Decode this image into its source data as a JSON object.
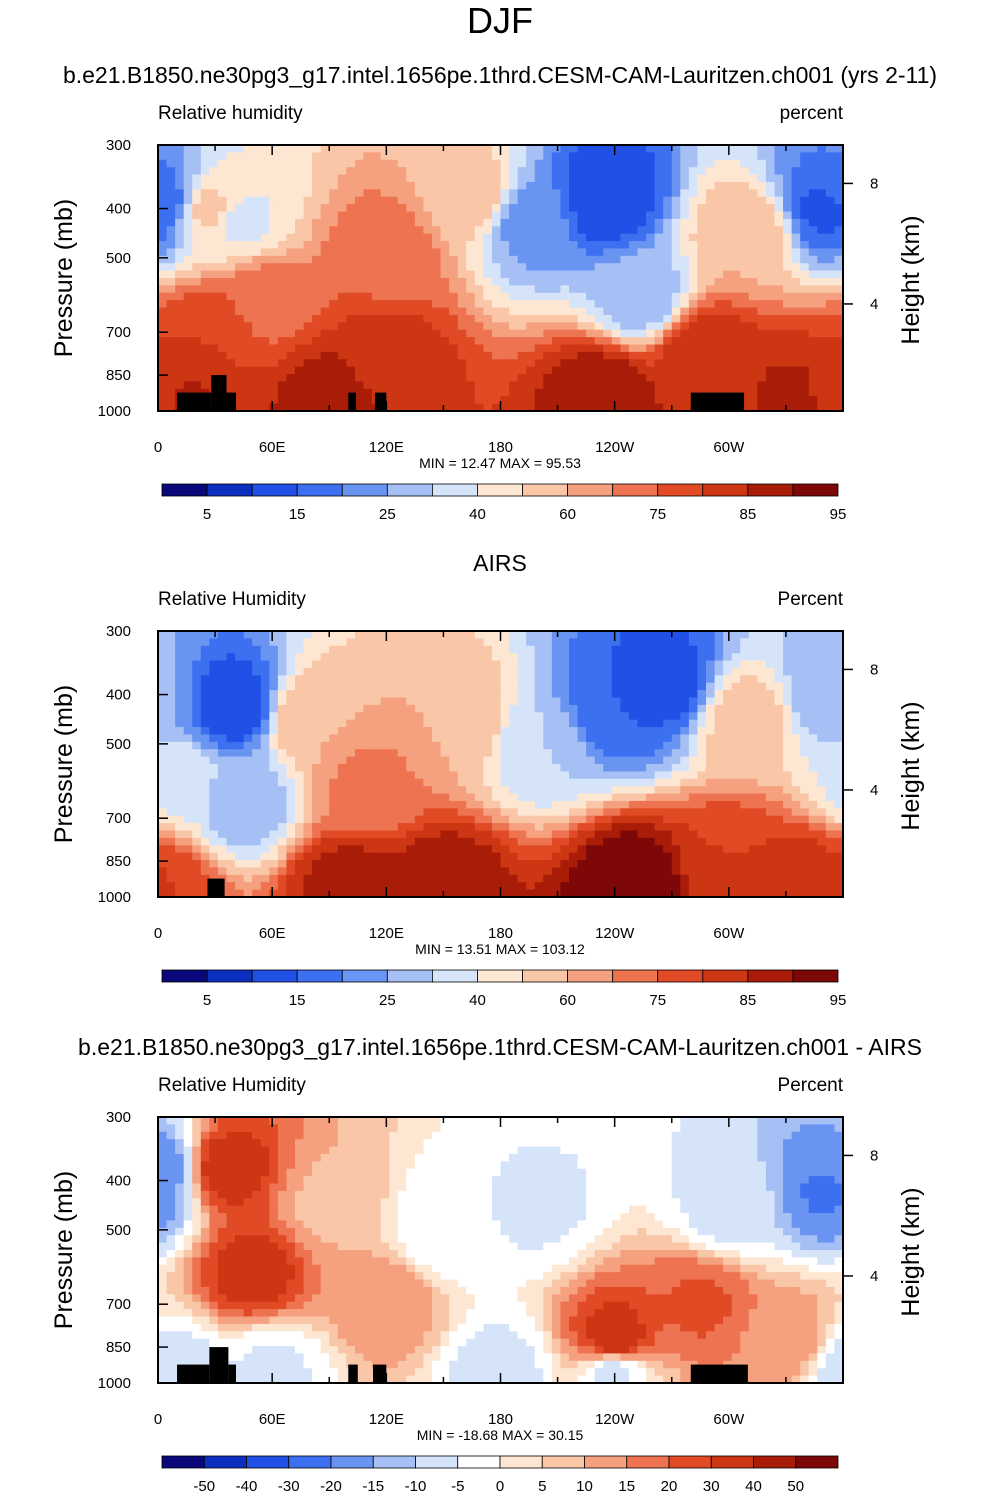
{
  "main_title": "DJF",
  "colors": {
    "rh_levels": [
      "#08087a",
      "#0c2fc0",
      "#2050e6",
      "#3c70f0",
      "#6a94f2",
      "#a6c0f6",
      "#d6e4fa",
      "#fde7d2",
      "#fac6a8",
      "#f5a07e",
      "#ee7350",
      "#e04a24",
      "#cc3612",
      "#a81c08",
      "#7e0808"
    ],
    "diff_levels": [
      "#08087a",
      "#0c2fc0",
      "#2050e6",
      "#3c70f0",
      "#6a94f2",
      "#a6c0f6",
      "#d6e4fa",
      "#ffffff",
      "#fde7d2",
      "#fac6a8",
      "#f5a07e",
      "#ee7350",
      "#e04a24",
      "#cc3612",
      "#a81c08",
      "#7e0808"
    ]
  },
  "chart_data": [
    {
      "type": "contour",
      "title": "b.e21.B1850.ne30pg3_g17.intel.1656pe.1thrd.CESM-CAM-Lauritzen.ch001 (yrs 2-11)",
      "left_label": "Relative humidity",
      "right_label": "percent",
      "ylabel": "Pressure (mb)",
      "ylabel_right": "Height (km)",
      "x_ticks": [
        "0",
        "60E",
        "120E",
        "180",
        "120W",
        "60W"
      ],
      "y_ticks": [
        "300",
        "400",
        "500",
        "700",
        "850",
        "1000"
      ],
      "y_ticks_right": [
        "8",
        "4"
      ],
      "min_max_text": "MIN =  12.47   MAX =  95.53",
      "colorbar_labels": [
        "5",
        "15",
        "25",
        "40",
        "60",
        "75",
        "85",
        "95"
      ],
      "blobs": [
        {
          "lon": 0,
          "p": 950,
          "v": 85
        },
        {
          "lon": 15,
          "p": 950,
          "v": 87
        },
        {
          "lon": 28,
          "p": 700,
          "v": 80
        },
        {
          "lon": 28,
          "p": 400,
          "v": 55
        },
        {
          "lon": 42,
          "p": 420,
          "v": 45
        },
        {
          "lon": 55,
          "p": 600,
          "v": 70
        },
        {
          "lon": 90,
          "p": 950,
          "v": 90
        },
        {
          "lon": 120,
          "p": 800,
          "v": 85
        },
        {
          "lon": 120,
          "p": 500,
          "v": 72
        },
        {
          "lon": 165,
          "p": 380,
          "v": 58
        },
        {
          "lon": 195,
          "p": 420,
          "v": 30
        },
        {
          "lon": 235,
          "p": 380,
          "v": 14
        },
        {
          "lon": 255,
          "p": 600,
          "v": 35
        },
        {
          "lon": 235,
          "p": 920,
          "v": 92
        },
        {
          "lon": 285,
          "p": 760,
          "v": 85
        },
        {
          "lon": 300,
          "p": 900,
          "v": 85
        },
        {
          "lon": 310,
          "p": 450,
          "v": 60
        },
        {
          "lon": 330,
          "p": 950,
          "v": 88
        },
        {
          "lon": 352,
          "p": 400,
          "v": 18
        },
        {
          "lon": 3,
          "p": 380,
          "v": 25
        }
      ],
      "land": [
        {
          "lon0": 10,
          "lon1": 28,
          "p_top": 920
        },
        {
          "lon0": 28,
          "lon1": 36,
          "p_top": 850
        },
        {
          "lon0": 36,
          "lon1": 41,
          "p_top": 920
        },
        {
          "lon0": 100,
          "lon1": 104,
          "p_top": 920
        },
        {
          "lon0": 114,
          "lon1": 120,
          "p_top": 920
        },
        {
          "lon0": 280,
          "lon1": 308,
          "p_top": 920
        }
      ]
    },
    {
      "type": "contour",
      "title": "AIRS",
      "left_label": "Relative Humidity",
      "right_label": "Percent",
      "ylabel": "Pressure (mb)",
      "ylabel_right": "Height (km)",
      "x_ticks": [
        "0",
        "60E",
        "120E",
        "180",
        "120W",
        "60W"
      ],
      "y_ticks": [
        "300",
        "400",
        "500",
        "700",
        "850",
        "1000"
      ],
      "y_ticks_right": [
        "8",
        "4"
      ],
      "min_max_text": "MIN =  13.51   MAX = 103.12",
      "colorbar_labels": [
        "5",
        "15",
        "25",
        "40",
        "60",
        "75",
        "85",
        "95"
      ],
      "blobs": [
        {
          "lon": 0,
          "p": 950,
          "v": 80
        },
        {
          "lon": 10,
          "p": 600,
          "v": 45
        },
        {
          "lon": 40,
          "p": 420,
          "v": 15
        },
        {
          "lon": 45,
          "p": 650,
          "v": 35
        },
        {
          "lon": 80,
          "p": 450,
          "v": 60
        },
        {
          "lon": 110,
          "p": 600,
          "v": 68
        },
        {
          "lon": 150,
          "p": 950,
          "v": 92
        },
        {
          "lon": 100,
          "p": 950,
          "v": 90
        },
        {
          "lon": 160,
          "p": 450,
          "v": 60
        },
        {
          "lon": 200,
          "p": 500,
          "v": 40
        },
        {
          "lon": 240,
          "p": 420,
          "v": 20
        },
        {
          "lon": 265,
          "p": 380,
          "v": 16
        },
        {
          "lon": 250,
          "p": 950,
          "v": 100
        },
        {
          "lon": 300,
          "p": 850,
          "v": 80
        },
        {
          "lon": 310,
          "p": 450,
          "v": 58
        },
        {
          "lon": 340,
          "p": 930,
          "v": 85
        },
        {
          "lon": 352,
          "p": 400,
          "v": 35
        }
      ],
      "land": [
        {
          "lon0": 26,
          "lon1": 35,
          "p_top": 920
        }
      ]
    },
    {
      "type": "contour",
      "title": "b.e21.B1850.ne30pg3_g17.intel.1656pe.1thrd.CESM-CAM-Lauritzen.ch001 - AIRS",
      "left_label": "Relative Humidity",
      "right_label": "Percent",
      "ylabel": "Pressure (mb)",
      "ylabel_right": "Height (km)",
      "x_ticks": [
        "0",
        "60E",
        "120E",
        "180",
        "120W",
        "60W"
      ],
      "y_ticks": [
        "300",
        "400",
        "500",
        "700",
        "850",
        "1000"
      ],
      "y_ticks_right": [
        "8",
        "4"
      ],
      "min_max_text": "MIN = -18.68   MAX =  30.15",
      "colorbar_labels": [
        "-50",
        "-40",
        "-30",
        "-20",
        "-15",
        "-10",
        "-5",
        "0",
        "5",
        "10",
        "15",
        "20",
        "30",
        "40",
        "50"
      ],
      "blobs": [
        {
          "lon": 2,
          "p": 380,
          "v": -15
        },
        {
          "lon": 5,
          "p": 950,
          "v": -8
        },
        {
          "lon": 35,
          "p": 380,
          "v": 25
        },
        {
          "lon": 50,
          "p": 600,
          "v": 24
        },
        {
          "lon": 60,
          "p": 950,
          "v": -5
        },
        {
          "lon": 90,
          "p": 450,
          "v": 8
        },
        {
          "lon": 120,
          "p": 700,
          "v": 12
        },
        {
          "lon": 150,
          "p": 500,
          "v": -4
        },
        {
          "lon": 200,
          "p": 450,
          "v": -5
        },
        {
          "lon": 240,
          "p": 830,
          "v": 26
        },
        {
          "lon": 240,
          "p": 950,
          "v": -6
        },
        {
          "lon": 285,
          "p": 700,
          "v": 18
        },
        {
          "lon": 300,
          "p": 450,
          "v": -6
        },
        {
          "lon": 330,
          "p": 820,
          "v": 12
        },
        {
          "lon": 352,
          "p": 420,
          "v": -18
        },
        {
          "lon": 180,
          "p": 950,
          "v": -6
        }
      ],
      "land": [
        {
          "lon0": 10,
          "lon1": 27,
          "p_top": 920
        },
        {
          "lon0": 27,
          "lon1": 37,
          "p_top": 850
        },
        {
          "lon0": 37,
          "lon1": 41,
          "p_top": 920
        },
        {
          "lon0": 100,
          "lon1": 105,
          "p_top": 920
        },
        {
          "lon0": 113,
          "lon1": 120,
          "p_top": 920
        },
        {
          "lon0": 280,
          "lon1": 310,
          "p_top": 920
        }
      ]
    }
  ]
}
